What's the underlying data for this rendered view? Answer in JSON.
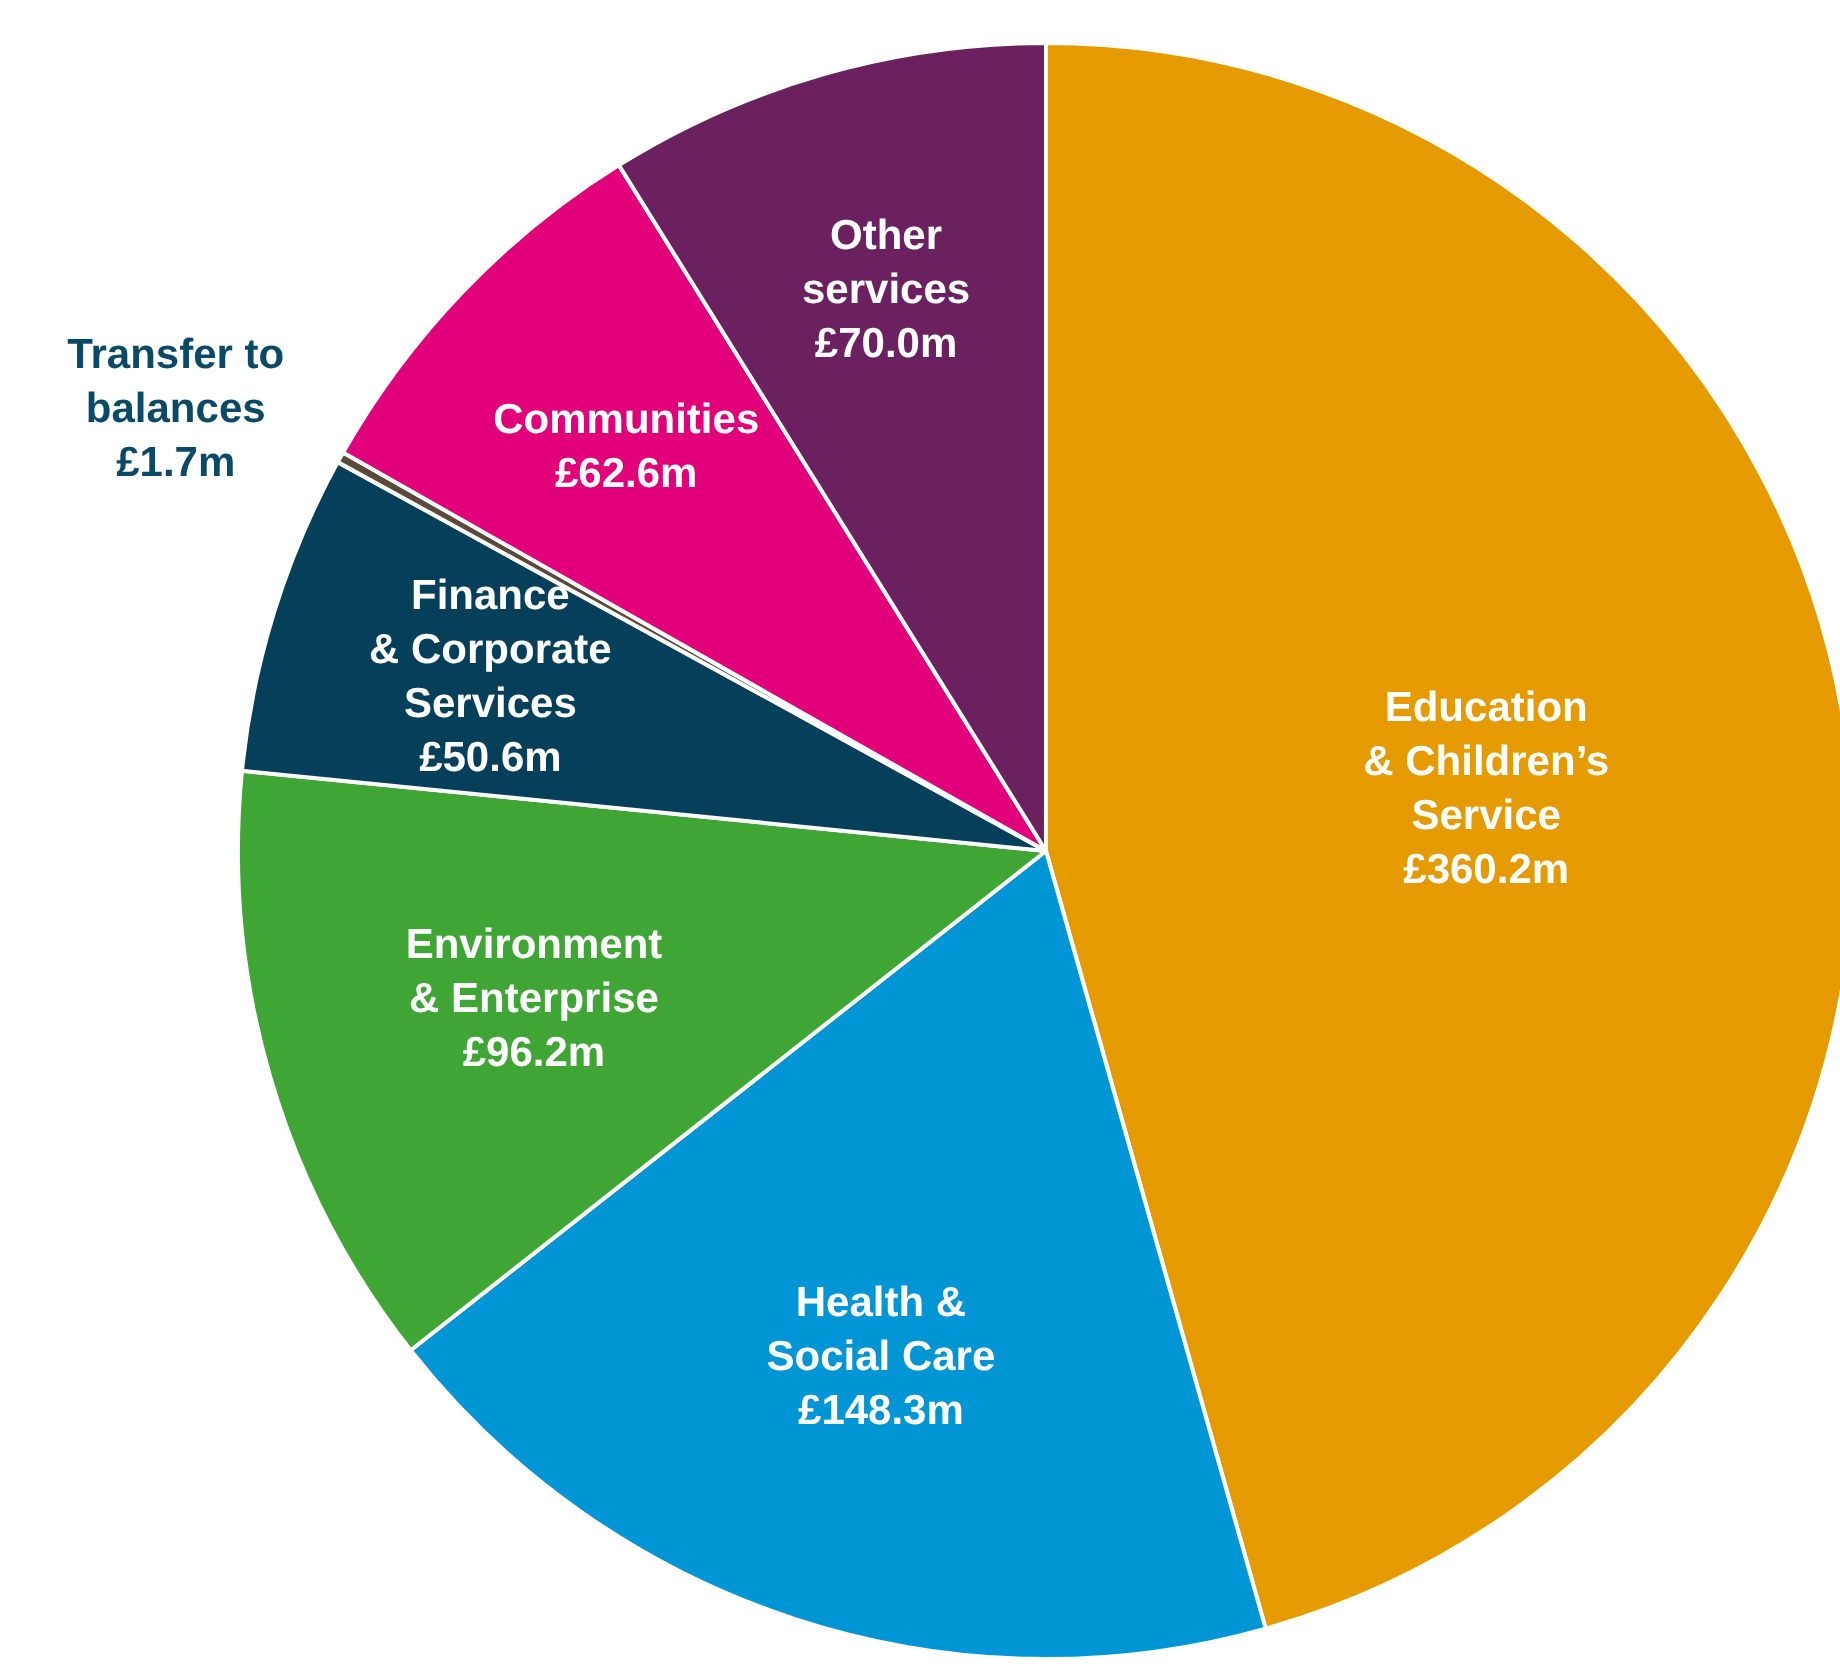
{
  "chart_data": {
    "type": "pie",
    "categories": [
      "Education\n& Children’s\nService",
      "Health &\nSocial Care",
      "Environment\n& Enterprise",
      "Finance\n& Corporate\nServices",
      "Transfer to\nbalances",
      "Communities",
      "Other\nservices"
    ],
    "values": [
      360.2,
      148.3,
      96.2,
      50.6,
      1.7,
      62.6,
      70.0
    ],
    "value_labels": [
      "£360.2m",
      "£148.3m",
      "£96.2m",
      "£50.6m",
      "£1.7m",
      "£62.6m",
      "£70.0m"
    ],
    "colors": [
      "#e59b00",
      "#0096d6",
      "#3fa535",
      "#063f5a",
      "#5a4a3a",
      "#e2007a",
      "#6b2160"
    ],
    "legend": false
  }
}
